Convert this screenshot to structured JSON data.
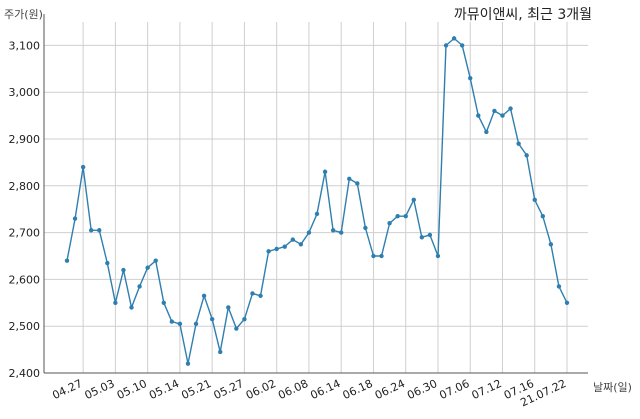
{
  "chart_data": {
    "type": "line",
    "title": "까뮤이앤씨, 최근 3개월",
    "ylabel": "주가(원)",
    "xlabel": "날짜(일)",
    "ylim": [
      2400,
      3150
    ],
    "yticks": [
      2400,
      2500,
      2600,
      2700,
      2800,
      2900,
      3000,
      3100
    ],
    "ytick_labels": [
      "2,400",
      "2,500",
      "2,600",
      "2,700",
      "2,800",
      "2,900",
      "3,000",
      "3,100"
    ],
    "xtick_labels": [
      "04.27",
      "05.03",
      "05.10",
      "05.14",
      "05.21",
      "05.27",
      "06.02",
      "06.08",
      "06.14",
      "06.18",
      "06.24",
      "06.30",
      "07.06",
      "07.12",
      "07.16",
      "21.07.22"
    ],
    "xtick_indices": [
      2,
      6,
      10,
      14,
      18,
      22,
      26,
      30,
      34,
      38,
      42,
      46,
      50,
      54,
      58,
      62
    ],
    "grid": true,
    "line_color": "#2e7fb0",
    "series": [
      {
        "values": [
          2640,
          2730,
          2840,
          2705,
          2705,
          2635,
          2550,
          2620,
          2540,
          2585,
          2625,
          2640,
          2550,
          2510,
          2505,
          2420,
          2505,
          2565,
          2515,
          2445,
          2540,
          2495,
          2515,
          2570,
          2565,
          2660,
          2665,
          2670,
          2685,
          2675,
          2700,
          2740,
          2830,
          2705,
          2700,
          2815,
          2805,
          2710,
          2650,
          2650,
          2720,
          2735,
          2735,
          2770,
          2690,
          2695,
          2650,
          3100,
          3115,
          3100,
          3030,
          2950,
          2915,
          2960,
          2950,
          2965,
          2890,
          2865,
          2770,
          2735,
          2675,
          2585,
          2550
        ]
      }
    ]
  }
}
